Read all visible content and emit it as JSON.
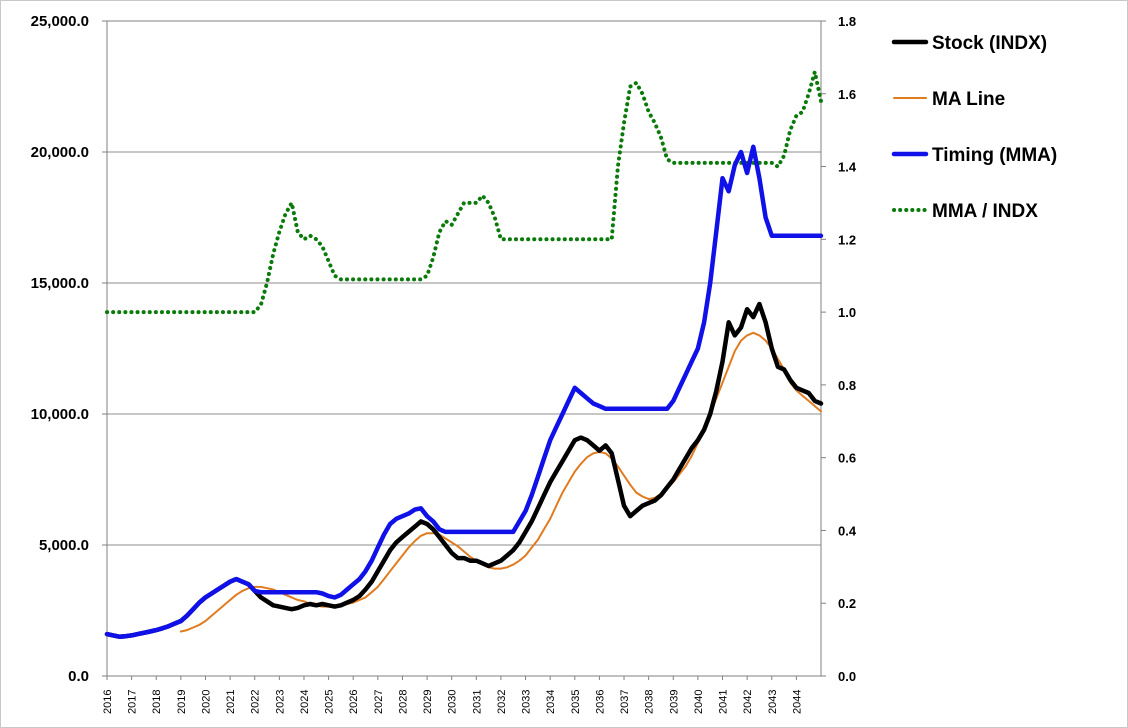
{
  "chart_data": {
    "type": "line",
    "title": "",
    "xlabel": "",
    "ylabel": "",
    "x": [
      2016.0,
      2016.25,
      2016.5,
      2016.75,
      2017.0,
      2017.25,
      2017.5,
      2017.75,
      2018.0,
      2018.25,
      2018.5,
      2018.75,
      2019.0,
      2019.25,
      2019.5,
      2019.75,
      2020.0,
      2020.25,
      2020.5,
      2020.75,
      2021.0,
      2021.25,
      2021.5,
      2021.75,
      2022.0,
      2022.25,
      2022.5,
      2022.75,
      2023.0,
      2023.25,
      2023.5,
      2023.75,
      2024.0,
      2024.25,
      2024.5,
      2024.75,
      2025.0,
      2025.25,
      2025.5,
      2025.75,
      2026.0,
      2026.25,
      2026.5,
      2026.75,
      2027.0,
      2027.25,
      2027.5,
      2027.75,
      2028.0,
      2028.25,
      2028.5,
      2028.75,
      2029.0,
      2029.25,
      2029.5,
      2029.75,
      2030.0,
      2030.25,
      2030.5,
      2030.75,
      2031.0,
      2031.25,
      2031.5,
      2031.75,
      2032.0,
      2032.25,
      2032.5,
      2032.75,
      2033.0,
      2033.25,
      2033.5,
      2033.75,
      2034.0,
      2034.25,
      2034.5,
      2034.75,
      2035.0,
      2035.25,
      2035.5,
      2035.75,
      2036.0,
      2036.25,
      2036.5,
      2036.75,
      2037.0,
      2037.25,
      2037.5,
      2037.75,
      2038.0,
      2038.25,
      2038.5,
      2038.75,
      2039.0,
      2039.25,
      2039.5,
      2039.75,
      2040.0,
      2040.25,
      2040.5,
      2040.75,
      2041.0,
      2041.25,
      2041.5,
      2041.75,
      2042.0,
      2042.25,
      2042.5,
      2042.75,
      2043.0,
      2043.25,
      2043.5,
      2043.75,
      2044.0,
      2044.25,
      2044.5,
      2044.75,
      2045.0
    ],
    "x_ticks": [
      "2016",
      "2017",
      "2018",
      "2019",
      "2020",
      "2021",
      "2022",
      "2023",
      "2024",
      "2025",
      "2026",
      "2027",
      "2028",
      "2029",
      "2030",
      "2031",
      "2032",
      "2033",
      "2034",
      "2035",
      "2036",
      "2037",
      "2038",
      "2039",
      "2040",
      "2041",
      "2042",
      "2043",
      "2044"
    ],
    "y_left": {
      "range": [
        0,
        25000
      ],
      "ticks": [
        "0.0",
        "5,000.0",
        "10,000.0",
        "15,000.0",
        "20,000.0",
        "25,000.0"
      ]
    },
    "y_right": {
      "range": [
        0,
        1.8
      ],
      "ticks": [
        "0.0",
        "0.2",
        "0.4",
        "0.6",
        "0.8",
        "1.0",
        "1.2",
        "1.4",
        "1.6",
        "1.8"
      ]
    },
    "grid": "horizontal",
    "legend_position": "right",
    "series": [
      {
        "name": "Stock (INDX)",
        "axis": "left",
        "color": "#000000",
        "style": "solid-thick",
        "values": [
          1600,
          1550,
          1500,
          1520,
          1550,
          1600,
          1650,
          1700,
          1750,
          1820,
          1900,
          2000,
          2100,
          2300,
          2550,
          2800,
          3000,
          3150,
          3300,
          3450,
          3600,
          3700,
          3600,
          3500,
          3250,
          3000,
          2850,
          2700,
          2650,
          2600,
          2550,
          2600,
          2700,
          2750,
          2700,
          2750,
          2700,
          2650,
          2700,
          2800,
          2900,
          3050,
          3300,
          3600,
          4000,
          4400,
          4800,
          5100,
          5300,
          5500,
          5700,
          5900,
          5800,
          5600,
          5300,
          5000,
          4700,
          4500,
          4500,
          4400,
          4400,
          4300,
          4200,
          4300,
          4400,
          4600,
          4800,
          5100,
          5500,
          5900,
          6400,
          6900,
          7400,
          7800,
          8200,
          8600,
          9000,
          9100,
          9000,
          8800,
          8600,
          8800,
          8500,
          7500,
          6500,
          6100,
          6300,
          6500,
          6600,
          6700,
          6900,
          7200,
          7500,
          7900,
          8300,
          8700,
          9000,
          9400,
          10000,
          10900,
          12000,
          13500,
          13000,
          13300,
          14000,
          13700,
          14200,
          13500,
          12500,
          11800,
          11700,
          11300,
          11000,
          10900,
          10800,
          10500,
          10400
        ]
      },
      {
        "name": "MA Line",
        "axis": "left",
        "color": "#e07b20",
        "style": "solid-thin",
        "values": [
          null,
          null,
          null,
          null,
          null,
          null,
          null,
          null,
          null,
          null,
          null,
          null,
          1700,
          1750,
          1850,
          1950,
          2100,
          2300,
          2500,
          2700,
          2900,
          3100,
          3250,
          3350,
          3400,
          3400,
          3350,
          3300,
          3200,
          3100,
          3000,
          2900,
          2850,
          2750,
          2700,
          2650,
          2650,
          2650,
          2700,
          2750,
          2800,
          2900,
          3000,
          3200,
          3400,
          3700,
          4000,
          4300,
          4600,
          4900,
          5150,
          5350,
          5450,
          5450,
          5400,
          5250,
          5100,
          4950,
          4750,
          4550,
          4400,
          4250,
          4150,
          4100,
          4100,
          4150,
          4250,
          4400,
          4600,
          4900,
          5200,
          5600,
          6000,
          6500,
          7000,
          7400,
          7800,
          8100,
          8350,
          8500,
          8550,
          8500,
          8300,
          8000,
          7650,
          7300,
          7000,
          6850,
          6750,
          6800,
          6950,
          7150,
          7400,
          7700,
          8000,
          8400,
          8900,
          9400,
          10000,
          10600,
          11200,
          11800,
          12400,
          12800,
          13000,
          13100,
          13000,
          12800,
          12500,
          12100,
          11700,
          11200,
          10900,
          10700,
          10500,
          10300,
          10100
        ]
      },
      {
        "name": "Timing (MMA)",
        "axis": "left",
        "color": "#1010e8",
        "style": "solid-thick",
        "values": [
          1600,
          1550,
          1500,
          1520,
          1550,
          1600,
          1650,
          1700,
          1750,
          1820,
          1900,
          2000,
          2100,
          2300,
          2550,
          2800,
          3000,
          3150,
          3300,
          3450,
          3600,
          3700,
          3600,
          3500,
          3250,
          3200,
          3200,
          3200,
          3200,
          3200,
          3200,
          3200,
          3200,
          3200,
          3200,
          3150,
          3050,
          3000,
          3100,
          3300,
          3500,
          3700,
          4000,
          4400,
          4900,
          5400,
          5800,
          6000,
          6100,
          6200,
          6350,
          6400,
          6100,
          5900,
          5600,
          5500,
          5500,
          5500,
          5500,
          5500,
          5500,
          5500,
          5500,
          5500,
          5500,
          5500,
          5500,
          5900,
          6300,
          6900,
          7600,
          8300,
          9000,
          9500,
          10000,
          10500,
          11000,
          10800,
          10600,
          10400,
          10300,
          10200,
          10200,
          10200,
          10200,
          10200,
          10200,
          10200,
          10200,
          10200,
          10200,
          10200,
          10500,
          11000,
          11500,
          12000,
          12500,
          13500,
          15000,
          17000,
          19000,
          18500,
          19500,
          20000,
          19200,
          20200,
          19000,
          17500,
          16800,
          16800,
          16800,
          16800,
          16800,
          16800,
          16800,
          16800,
          16800
        ]
      },
      {
        "name": "MMA / INDX",
        "axis": "right",
        "color": "#0a7a0a",
        "style": "dotted",
        "values": [
          1.0,
          1.0,
          1.0,
          1.0,
          1.0,
          1.0,
          1.0,
          1.0,
          1.0,
          1.0,
          1.0,
          1.0,
          1.0,
          1.0,
          1.0,
          1.0,
          1.0,
          1.0,
          1.0,
          1.0,
          1.0,
          1.0,
          1.0,
          1.0,
          1.0,
          1.02,
          1.08,
          1.16,
          1.22,
          1.27,
          1.3,
          1.22,
          1.2,
          1.21,
          1.2,
          1.18,
          1.14,
          1.1,
          1.09,
          1.09,
          1.09,
          1.09,
          1.09,
          1.09,
          1.09,
          1.09,
          1.09,
          1.09,
          1.09,
          1.09,
          1.09,
          1.09,
          1.1,
          1.15,
          1.22,
          1.25,
          1.24,
          1.27,
          1.3,
          1.3,
          1.3,
          1.32,
          1.3,
          1.26,
          1.2,
          1.2,
          1.2,
          1.2,
          1.2,
          1.2,
          1.2,
          1.2,
          1.2,
          1.2,
          1.2,
          1.2,
          1.2,
          1.2,
          1.2,
          1.2,
          1.2,
          1.2,
          1.2,
          1.4,
          1.52,
          1.62,
          1.63,
          1.6,
          1.55,
          1.52,
          1.48,
          1.42,
          1.41,
          1.41,
          1.41,
          1.41,
          1.41,
          1.41,
          1.41,
          1.41,
          1.41,
          1.41,
          1.41,
          1.41,
          1.41,
          1.41,
          1.41,
          1.41,
          1.41,
          1.4,
          1.43,
          1.5,
          1.54,
          1.55,
          1.6,
          1.66,
          1.58
        ]
      }
    ]
  }
}
